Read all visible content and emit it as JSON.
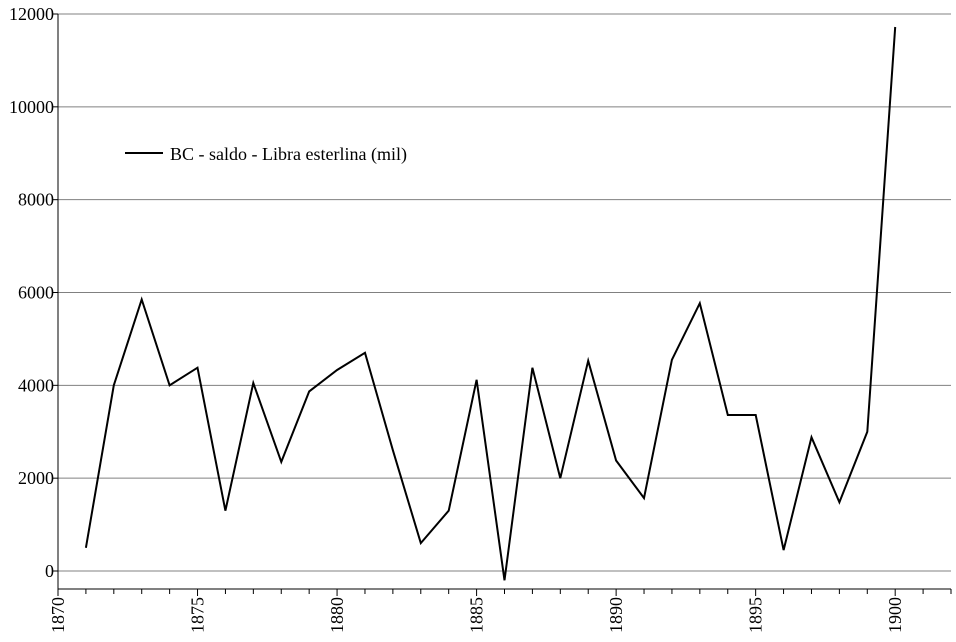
{
  "chart_data": {
    "type": "line",
    "title": "",
    "xlabel": "",
    "ylabel": "",
    "xlim": [
      1870,
      1902
    ],
    "ylim": [
      -400,
      12000
    ],
    "x_ticks": [
      1870,
      1875,
      1880,
      1885,
      1890,
      1895,
      1900
    ],
    "x_tick_labels": [
      "1870",
      "1875",
      "1880",
      "1885",
      "1890",
      "1895",
      "1900"
    ],
    "y_ticks": [
      0,
      2000,
      4000,
      6000,
      8000,
      10000,
      12000
    ],
    "y_tick_labels": [
      "0",
      "2000",
      "4000",
      "6000",
      "8000",
      "10000",
      "12000"
    ],
    "grid": "horizontal",
    "legend_position": "top-left",
    "series": [
      {
        "name": "BC - saldo - Libra esterlina (mil)",
        "color": "#000000",
        "x": [
          1871,
          1872,
          1873,
          1874,
          1875,
          1876,
          1877,
          1878,
          1879,
          1880,
          1881,
          1882,
          1883,
          1884,
          1885,
          1886,
          1887,
          1888,
          1889,
          1890,
          1891,
          1892,
          1893,
          1894,
          1895,
          1896,
          1897,
          1898,
          1899,
          1900
        ],
        "values": [
          500,
          4000,
          5850,
          4000,
          4380,
          1300,
          4050,
          2350,
          3870,
          4330,
          4700,
          2600,
          600,
          1300,
          4120,
          -200,
          4380,
          2000,
          4530,
          2380,
          1570,
          4550,
          5770,
          3360,
          3360,
          450,
          2880,
          1480,
          3000,
          11720
        ]
      }
    ]
  }
}
